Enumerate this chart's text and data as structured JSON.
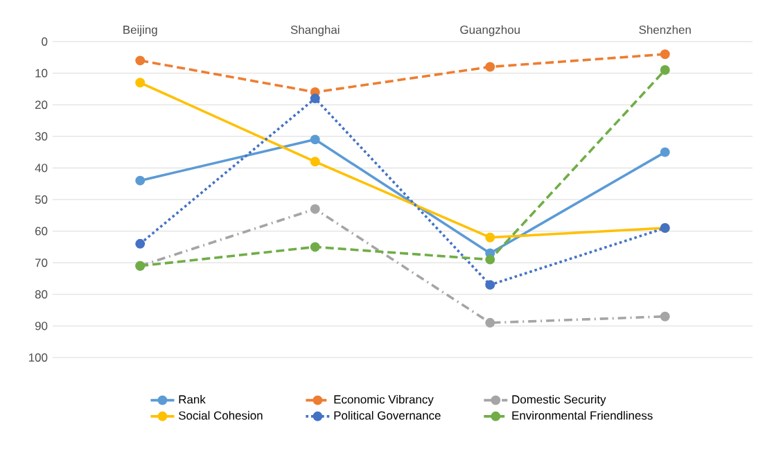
{
  "chart_data": {
    "type": "line",
    "categories": [
      "Beijing",
      "Shanghai",
      "Guangzhou",
      "Shenzhen"
    ],
    "series": [
      {
        "name": "Rank",
        "color": "#5b9bd5",
        "line_style": "solid",
        "values": [
          44,
          31,
          67,
          35
        ]
      },
      {
        "name": "Economic Vibrancy",
        "color": "#ed7d31",
        "line_style": "dashed",
        "values": [
          6,
          16,
          8,
          4
        ]
      },
      {
        "name": "Domestic Security",
        "color": "#a5a5a5",
        "line_style": "dashdot",
        "values": [
          71,
          53,
          89,
          87
        ]
      },
      {
        "name": "Social Cohesion",
        "color": "#ffc000",
        "line_style": "solid",
        "values": [
          13,
          38,
          62,
          59
        ]
      },
      {
        "name": "Political Governance",
        "color": "#4472c4",
        "line_style": "dotted",
        "values": [
          64,
          18,
          77,
          59
        ]
      },
      {
        "name": "Environmental Friendliness",
        "color": "#70ad47",
        "line_style": "dashed",
        "values": [
          71,
          65,
          69,
          9
        ]
      }
    ],
    "ylim": [
      100,
      0
    ],
    "yticks": [
      0,
      10,
      20,
      30,
      40,
      50,
      60,
      70,
      80,
      90,
      100
    ],
    "grid": "y",
    "legend": "bottom",
    "marker": "circle"
  }
}
